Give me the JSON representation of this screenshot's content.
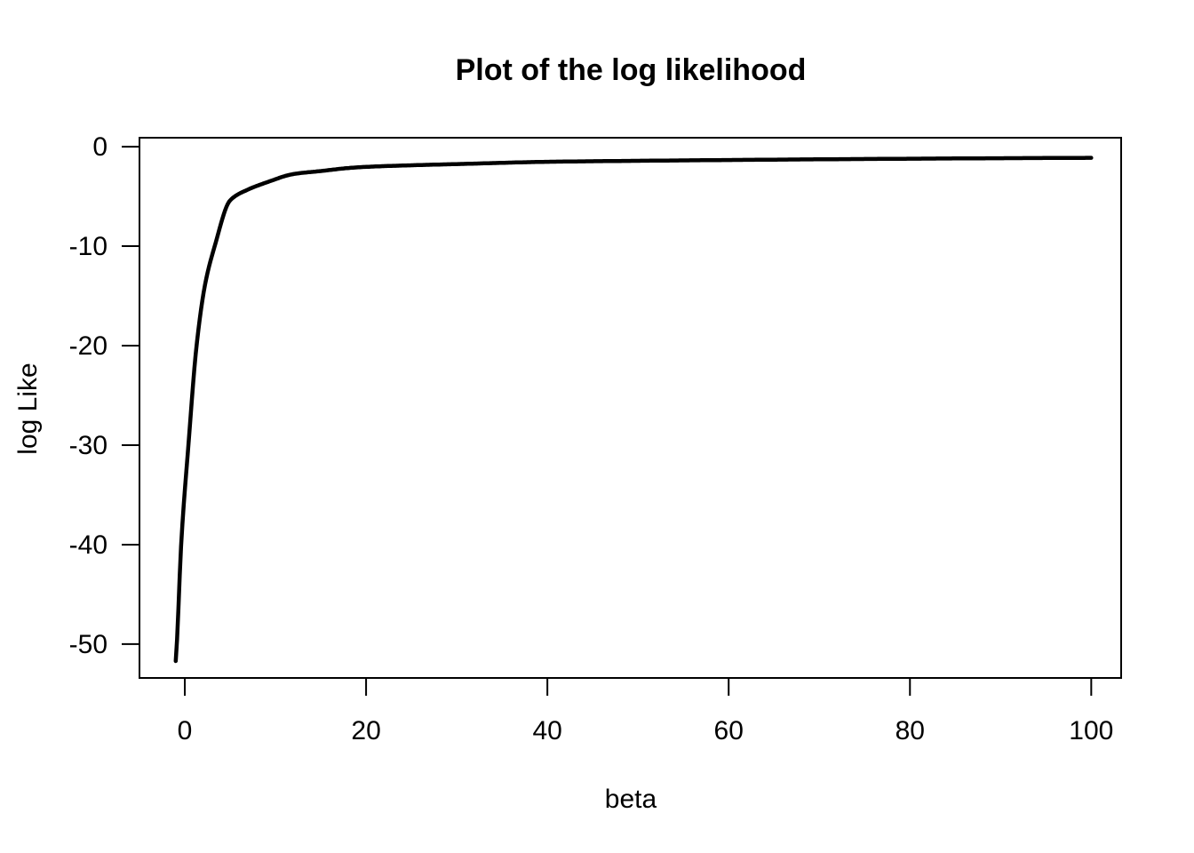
{
  "figure": {
    "title": "Plot of the log likelihood",
    "x_axis_label": "beta",
    "y_axis_label": "log Like"
  },
  "chart_data": {
    "type": "line",
    "title": "Plot of the log likelihood",
    "xlabel": "beta",
    "ylabel": "log Like",
    "x_ticks": [
      0,
      20,
      40,
      60,
      80,
      100
    ],
    "y_ticks": [
      0,
      -10,
      -20,
      -30,
      -40,
      -50
    ],
    "xlim": [
      -5,
      103.3
    ],
    "ylim": [
      -53.4,
      0.9
    ],
    "grid": false,
    "legend": false,
    "line_color": "#000000",
    "background": "#ffffff",
    "series": [
      {
        "name": "log likelihood curve",
        "points": [
          [
            -1,
            -51.7
          ],
          [
            -0.88,
            -50
          ],
          [
            -0.4,
            -40
          ],
          [
            0.4,
            -30
          ],
          [
            1.3,
            -20
          ],
          [
            2.25,
            -13.8
          ],
          [
            3.3,
            -10
          ],
          [
            5,
            -5.4
          ],
          [
            7,
            -4.3
          ],
          [
            9,
            -3.6
          ],
          [
            12,
            -2.75
          ],
          [
            15,
            -2.45
          ],
          [
            18,
            -2.15
          ],
          [
            20,
            -2.03
          ],
          [
            25,
            -1.87
          ],
          [
            30,
            -1.75
          ],
          [
            40,
            -1.52
          ],
          [
            50,
            -1.42
          ],
          [
            60,
            -1.34
          ],
          [
            70,
            -1.27
          ],
          [
            80,
            -1.21
          ],
          [
            90,
            -1.16
          ],
          [
            100,
            -1.12
          ]
        ]
      }
    ]
  }
}
